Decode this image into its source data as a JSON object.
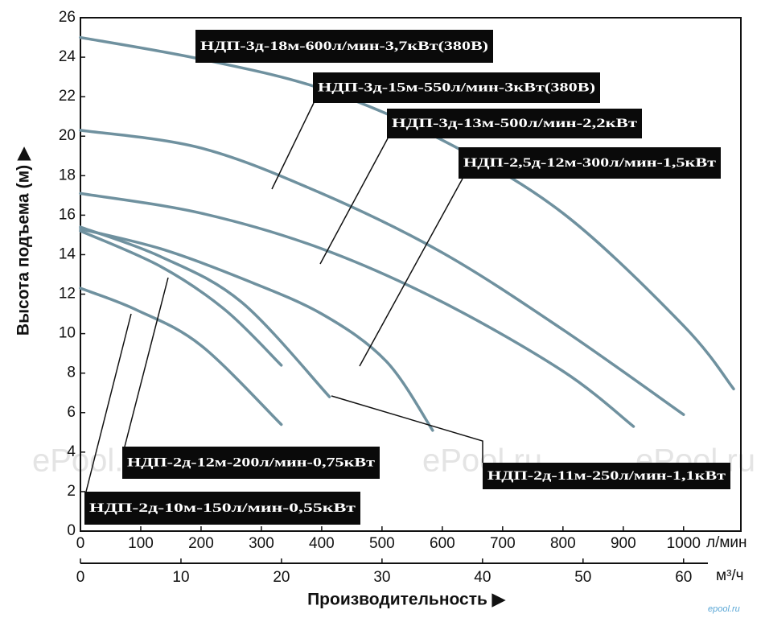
{
  "chart_data": {
    "type": "line",
    "ylabel": "Высота подъема (м) ▶",
    "xlabel": "Производительность ▶",
    "xunit": "л/мин",
    "x2unit": "м³/ч",
    "watermark": "ePool.ru",
    "watermark_small": "epool.ru",
    "xlim": [
      0,
      1095
    ],
    "xticks": [
      0,
      100,
      200,
      300,
      400,
      500,
      600,
      700,
      800,
      900,
      1000
    ],
    "x2lim": [
      0,
      65.7
    ],
    "x2ticks": [
      0,
      10,
      20,
      30,
      40,
      50,
      60
    ],
    "ylim": [
      0,
      26
    ],
    "yticks": [
      0,
      2,
      4,
      6,
      8,
      10,
      12,
      14,
      16,
      18,
      20,
      22,
      24,
      26
    ],
    "grid": false,
    "color": "#6f919f",
    "series": [
      {
        "name": "НДП-3д-18м-600л/мин-3,7кВт(380В)",
        "x": [
          0,
          200,
          400,
          600,
          800,
          1000,
          1083
        ],
        "values": [
          25,
          23.9,
          22.4,
          19.8,
          16.1,
          10.4,
          7.2
        ]
      },
      {
        "name": "НДП-3д-15м-550л/мин-3кВт(380В)",
        "x": [
          0,
          200,
          400,
          600,
          800,
          1000
        ],
        "values": [
          20.3,
          19.4,
          17.1,
          14.1,
          10.2,
          5.9
        ]
      },
      {
        "name": "НДП-3д-13м-500л/мин-2,2кВт",
        "x": [
          0,
          200,
          400,
          600,
          800,
          917
        ],
        "values": [
          17.1,
          16.1,
          14.3,
          11.6,
          8.1,
          5.3
        ]
      },
      {
        "name": "НДП-2,5д-12м-300л/мин-1,5кВт",
        "x": [
          0,
          133,
          267,
          400,
          507,
          584
        ],
        "values": [
          15.3,
          14.3,
          12.8,
          11.0,
          8.6,
          5.1
        ]
      },
      {
        "name": "НДП-2д-11м-250л/мин-1,1кВт",
        "x": [
          0,
          133,
          267,
          413
        ],
        "values": [
          15.4,
          13.9,
          11.6,
          6.8
        ]
      },
      {
        "name": "НДП-2д-12м-200л/мин-0,75кВт",
        "x": [
          0,
          133,
          240,
          333
        ],
        "values": [
          15.2,
          13.4,
          11.2,
          8.4
        ]
      },
      {
        "name": "НДП-2д-10м-150л/мин-0,55кВт",
        "x": [
          0,
          93,
          200,
          333
        ],
        "values": [
          12.3,
          11.2,
          9.4,
          5.4
        ]
      }
    ]
  }
}
